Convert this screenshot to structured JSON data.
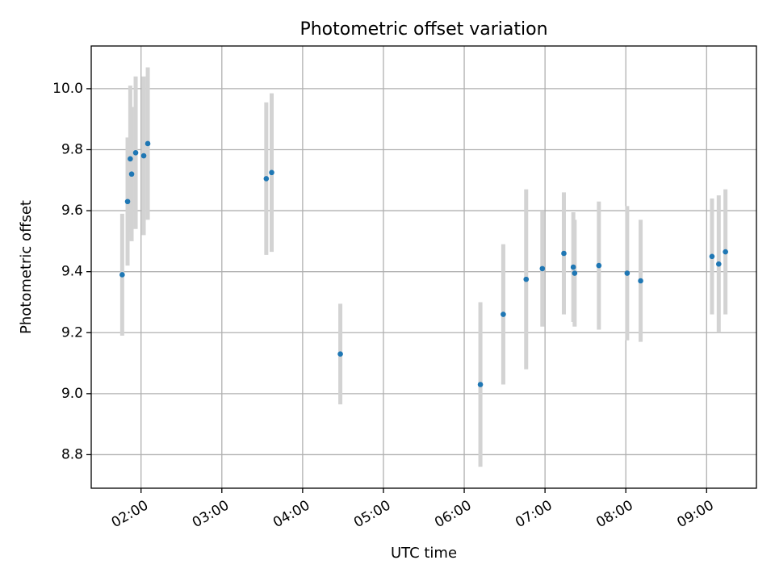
{
  "chart_data": {
    "type": "scatter",
    "title": "Photometric offset variation",
    "xlabel": "UTC time",
    "ylabel": "Photometric offset",
    "xlim": [
      "01:23",
      "09:37"
    ],
    "ylim": [
      8.69,
      10.14
    ],
    "x_ticks": [
      "02:00",
      "03:00",
      "04:00",
      "05:00",
      "06:00",
      "07:00",
      "08:00",
      "09:00"
    ],
    "y_ticks": [
      8.8,
      9.0,
      9.2,
      9.4,
      9.6,
      9.8,
      10.0
    ],
    "grid": true,
    "colors": {
      "point": "#1f77b4",
      "errorbar": "#d3d3d3"
    },
    "series": [
      {
        "points": [
          {
            "x": "01:46",
            "y": 9.39,
            "err": 0.2
          },
          {
            "x": "01:50",
            "y": 9.63,
            "err": 0.21
          },
          {
            "x": "01:52",
            "y": 9.77,
            "err": 0.24
          },
          {
            "x": "01:53",
            "y": 9.72,
            "err": 0.22
          },
          {
            "x": "01:56",
            "y": 9.79,
            "err": 0.25
          },
          {
            "x": "02:02",
            "y": 9.78,
            "err": 0.26
          },
          {
            "x": "02:05",
            "y": 9.82,
            "err": 0.25
          },
          {
            "x": "03:33",
            "y": 9.705,
            "err": 0.25
          },
          {
            "x": "03:37",
            "y": 9.725,
            "err": 0.26
          },
          {
            "x": "04:28",
            "y": 9.13,
            "err": 0.165
          },
          {
            "x": "06:12",
            "y": 9.03,
            "err": 0.27
          },
          {
            "x": "06:29",
            "y": 9.26,
            "err": 0.23
          },
          {
            "x": "06:46",
            "y": 9.375,
            "err": 0.295
          },
          {
            "x": "06:58",
            "y": 9.41,
            "err": 0.19
          },
          {
            "x": "07:14",
            "y": 9.46,
            "err": 0.2
          },
          {
            "x": "07:21",
            "y": 9.415,
            "err": 0.18
          },
          {
            "x": "07:22",
            "y": 9.395,
            "err": 0.175
          },
          {
            "x": "07:40",
            "y": 9.42,
            "err": 0.21
          },
          {
            "x": "08:01",
            "y": 9.395,
            "err": 0.22
          },
          {
            "x": "08:11",
            "y": 9.37,
            "err": 0.2
          },
          {
            "x": "09:04",
            "y": 9.45,
            "err": 0.19
          },
          {
            "x": "09:09",
            "y": 9.425,
            "err": 0.225
          },
          {
            "x": "09:14",
            "y": 9.465,
            "err": 0.205
          }
        ]
      }
    ]
  }
}
